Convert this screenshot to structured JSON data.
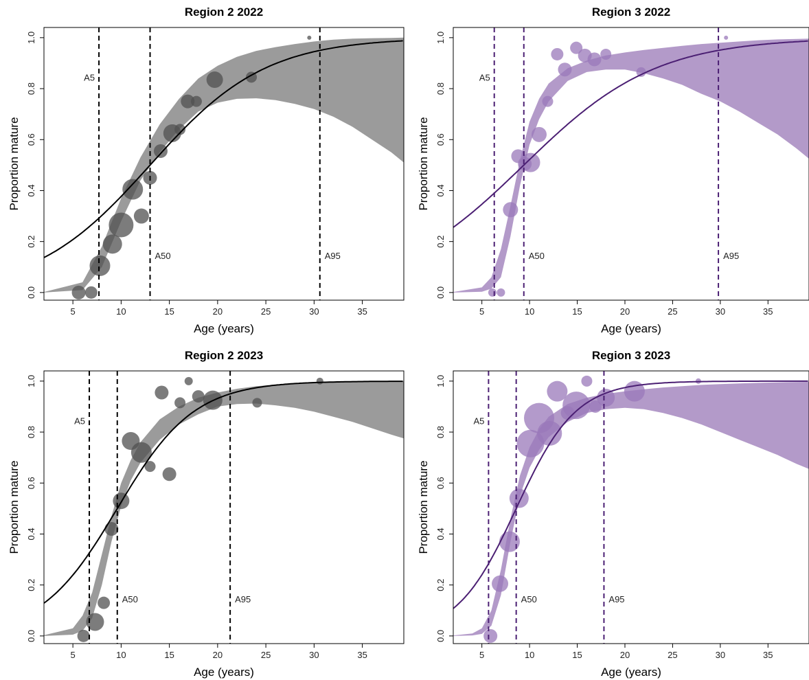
{
  "figure": {
    "x_tick_labels": [
      "5",
      "10",
      "15",
      "20",
      "25",
      "30",
      "35"
    ],
    "y_tick_labels": [
      "0.0",
      "0.2",
      "0.4",
      "0.6",
      "0.8",
      "1.0"
    ]
  },
  "chart_data": [
    {
      "type": "scatter",
      "title": "Region 2  2022",
      "xlabel": "Age (years)",
      "ylabel": "Proportion mature",
      "xlim": [
        2,
        39.3
      ],
      "ylim": [
        -0.03,
        1.04
      ],
      "xticks": [
        5,
        10,
        15,
        20,
        25,
        30,
        35
      ],
      "yticks": [
        0,
        0.2,
        0.4,
        0.6,
        0.8,
        1.0
      ],
      "color": "#000000",
      "band_color": "#9b9b9b",
      "point_color": "#505050",
      "curve": {
        "A50": 13.0,
        "A95": 30.6
      },
      "band_lower": [
        [
          2,
          0
        ],
        [
          6,
          0.01
        ],
        [
          8,
          0.1
        ],
        [
          10,
          0.28
        ],
        [
          12,
          0.44
        ],
        [
          14,
          0.55
        ],
        [
          16,
          0.64
        ],
        [
          18,
          0.71
        ],
        [
          20,
          0.745
        ],
        [
          22,
          0.76
        ],
        [
          24,
          0.762
        ],
        [
          26,
          0.755
        ],
        [
          28,
          0.74
        ],
        [
          30,
          0.72
        ],
        [
          32,
          0.69
        ],
        [
          34,
          0.65
        ],
        [
          36,
          0.6
        ],
        [
          38,
          0.55
        ],
        [
          39.3,
          0.51
        ]
      ],
      "band_upper": [
        [
          2,
          0.002
        ],
        [
          6,
          0.04
        ],
        [
          8,
          0.18
        ],
        [
          10,
          0.37
        ],
        [
          12,
          0.53
        ],
        [
          14,
          0.66
        ],
        [
          16,
          0.76
        ],
        [
          18,
          0.84
        ],
        [
          20,
          0.89
        ],
        [
          22,
          0.925
        ],
        [
          24,
          0.948
        ],
        [
          26,
          0.963
        ],
        [
          28,
          0.975
        ],
        [
          30,
          0.985
        ],
        [
          32,
          0.992
        ],
        [
          34,
          0.996
        ],
        [
          36,
          0.998
        ],
        [
          38,
          0.999
        ],
        [
          39.3,
          1.0
        ]
      ],
      "vlines": [
        {
          "label": "A5",
          "x": 7.7,
          "label_y": 0.845,
          "side": "left"
        },
        {
          "label": "A50",
          "x": 13.0,
          "label_y": 0.145,
          "side": "right"
        },
        {
          "label": "A95",
          "x": 30.6,
          "label_y": 0.145,
          "side": "right"
        }
      ],
      "points": [
        {
          "x": 5.6,
          "y": 0.0,
          "r": 10
        },
        {
          "x": 6.9,
          "y": 0.0,
          "r": 9
        },
        {
          "x": 7.8,
          "y": 0.105,
          "r": 15
        },
        {
          "x": 9.1,
          "y": 0.19,
          "r": 14
        },
        {
          "x": 10.0,
          "y": 0.265,
          "r": 18
        },
        {
          "x": 11.2,
          "y": 0.405,
          "r": 15
        },
        {
          "x": 12.1,
          "y": 0.3,
          "r": 11
        },
        {
          "x": 13.0,
          "y": 0.45,
          "r": 10
        },
        {
          "x": 14.1,
          "y": 0.555,
          "r": 10
        },
        {
          "x": 15.3,
          "y": 0.625,
          "r": 13
        },
        {
          "x": 16.1,
          "y": 0.64,
          "r": 8
        },
        {
          "x": 16.9,
          "y": 0.75,
          "r": 10
        },
        {
          "x": 17.8,
          "y": 0.75,
          "r": 8
        },
        {
          "x": 19.7,
          "y": 0.835,
          "r": 12
        },
        {
          "x": 23.5,
          "y": 0.845,
          "r": 8
        },
        {
          "x": 29.5,
          "y": 1.0,
          "r": 3
        }
      ]
    },
    {
      "type": "scatter",
      "title": "Region 3  2022",
      "xlabel": "Age (years)",
      "ylabel": "Proportion mature",
      "xlim": [
        2,
        39.3
      ],
      "ylim": [
        -0.03,
        1.04
      ],
      "xticks": [
        5,
        10,
        15,
        20,
        25,
        30,
        35
      ],
      "yticks": [
        0,
        0.2,
        0.4,
        0.6,
        0.8,
        1.0
      ],
      "color": "#4b1f73",
      "band_color": "#b39ac9",
      "point_color": "#9a78ba",
      "curve": {
        "A50": 9.4,
        "A95": 29.8
      },
      "band_lower": [
        [
          2,
          0
        ],
        [
          5,
          0.003
        ],
        [
          6,
          0.015
        ],
        [
          7,
          0.06
        ],
        [
          8,
          0.22
        ],
        [
          9,
          0.42
        ],
        [
          10,
          0.58
        ],
        [
          11,
          0.68
        ],
        [
          12,
          0.75
        ],
        [
          14,
          0.83
        ],
        [
          16,
          0.865
        ],
        [
          18,
          0.875
        ],
        [
          20,
          0.875
        ],
        [
          22,
          0.86
        ],
        [
          24,
          0.84
        ],
        [
          26,
          0.815
        ],
        [
          28,
          0.78
        ],
        [
          30,
          0.75
        ],
        [
          32,
          0.71
        ],
        [
          34,
          0.665
        ],
        [
          36,
          0.62
        ],
        [
          38,
          0.565
        ],
        [
          39.3,
          0.525
        ]
      ],
      "band_upper": [
        [
          2,
          0.002
        ],
        [
          5,
          0.02
        ],
        [
          6,
          0.06
        ],
        [
          7,
          0.17
        ],
        [
          8,
          0.34
        ],
        [
          9,
          0.52
        ],
        [
          10,
          0.67
        ],
        [
          11,
          0.76
        ],
        [
          12,
          0.82
        ],
        [
          14,
          0.88
        ],
        [
          16,
          0.91
        ],
        [
          18,
          0.93
        ],
        [
          20,
          0.942
        ],
        [
          22,
          0.952
        ],
        [
          24,
          0.96
        ],
        [
          26,
          0.968
        ],
        [
          28,
          0.975
        ],
        [
          30,
          0.98
        ],
        [
          32,
          0.985
        ],
        [
          34,
          0.99
        ],
        [
          36,
          0.993
        ],
        [
          38,
          0.995
        ],
        [
          39.3,
          0.996
        ]
      ],
      "vlines": [
        {
          "label": "A5",
          "x": 6.3,
          "label_y": 0.845,
          "side": "left"
        },
        {
          "label": "A50",
          "x": 9.4,
          "label_y": 0.145,
          "side": "right"
        },
        {
          "label": "A95",
          "x": 29.8,
          "label_y": 0.145,
          "side": "right"
        }
      ],
      "points": [
        {
          "x": 6.1,
          "y": 0.0,
          "r": 6
        },
        {
          "x": 7.0,
          "y": 0.0,
          "r": 6
        },
        {
          "x": 8.0,
          "y": 0.325,
          "r": 11
        },
        {
          "x": 8.8,
          "y": 0.535,
          "r": 10
        },
        {
          "x": 9.5,
          "y": 0.505,
          "r": 10
        },
        {
          "x": 10.1,
          "y": 0.51,
          "r": 14
        },
        {
          "x": 11.0,
          "y": 0.62,
          "r": 11
        },
        {
          "x": 11.9,
          "y": 0.75,
          "r": 8
        },
        {
          "x": 12.9,
          "y": 0.935,
          "r": 9
        },
        {
          "x": 13.7,
          "y": 0.875,
          "r": 10
        },
        {
          "x": 14.9,
          "y": 0.96,
          "r": 9
        },
        {
          "x": 15.8,
          "y": 0.93,
          "r": 10
        },
        {
          "x": 16.8,
          "y": 0.915,
          "r": 10
        },
        {
          "x": 18.0,
          "y": 0.935,
          "r": 8
        },
        {
          "x": 21.7,
          "y": 0.865,
          "r": 7
        },
        {
          "x": 30.6,
          "y": 1.0,
          "r": 3
        }
      ]
    },
    {
      "type": "scatter",
      "title": "Region 2  2023",
      "xlabel": "Age (years)",
      "ylabel": "Proportion mature",
      "xlim": [
        2,
        39.3
      ],
      "ylim": [
        -0.03,
        1.04
      ],
      "xticks": [
        5,
        10,
        15,
        20,
        25,
        30,
        35
      ],
      "yticks": [
        0,
        0.2,
        0.4,
        0.6,
        0.8,
        1.0
      ],
      "color": "#000000",
      "band_color": "#9b9b9b",
      "point_color": "#505050",
      "curve": {
        "A50": 9.6,
        "A95": 21.3
      },
      "band_lower": [
        [
          2,
          0
        ],
        [
          5,
          0.005
        ],
        [
          6,
          0.02
        ],
        [
          7,
          0.07
        ],
        [
          8,
          0.2
        ],
        [
          9,
          0.37
        ],
        [
          10,
          0.51
        ],
        [
          11,
          0.61
        ],
        [
          12,
          0.68
        ],
        [
          14,
          0.77
        ],
        [
          16,
          0.83
        ],
        [
          18,
          0.87
        ],
        [
          20,
          0.9
        ],
        [
          22,
          0.91
        ],
        [
          24,
          0.912
        ],
        [
          26,
          0.905
        ],
        [
          28,
          0.895
        ],
        [
          30,
          0.88
        ],
        [
          32,
          0.86
        ],
        [
          34,
          0.84
        ],
        [
          36,
          0.815
        ],
        [
          38,
          0.79
        ],
        [
          39.3,
          0.775
        ]
      ],
      "band_upper": [
        [
          2,
          0.003
        ],
        [
          5,
          0.03
        ],
        [
          6,
          0.08
        ],
        [
          7,
          0.17
        ],
        [
          8,
          0.32
        ],
        [
          9,
          0.47
        ],
        [
          10,
          0.6
        ],
        [
          11,
          0.69
        ],
        [
          12,
          0.76
        ],
        [
          14,
          0.85
        ],
        [
          16,
          0.9
        ],
        [
          18,
          0.935
        ],
        [
          20,
          0.955
        ],
        [
          22,
          0.97
        ],
        [
          24,
          0.98
        ],
        [
          26,
          0.986
        ],
        [
          28,
          0.991
        ],
        [
          30,
          0.994
        ],
        [
          32,
          0.996
        ],
        [
          34,
          0.998
        ],
        [
          36,
          0.999
        ],
        [
          38,
          1.0
        ],
        [
          39.3,
          1.0
        ]
      ],
      "vlines": [
        {
          "label": "A5",
          "x": 6.7,
          "label_y": 0.845,
          "side": "left"
        },
        {
          "label": "A50",
          "x": 9.6,
          "label_y": 0.145,
          "side": "right"
        },
        {
          "label": "A95",
          "x": 21.3,
          "label_y": 0.145,
          "side": "right"
        }
      ],
      "points": [
        {
          "x": 6.1,
          "y": 0.0,
          "r": 9
        },
        {
          "x": 7.3,
          "y": 0.055,
          "r": 13
        },
        {
          "x": 8.2,
          "y": 0.13,
          "r": 9
        },
        {
          "x": 9.0,
          "y": 0.42,
          "r": 10
        },
        {
          "x": 10.0,
          "y": 0.53,
          "r": 12
        },
        {
          "x": 11.0,
          "y": 0.765,
          "r": 13
        },
        {
          "x": 12.1,
          "y": 0.72,
          "r": 15
        },
        {
          "x": 13.0,
          "y": 0.665,
          "r": 8
        },
        {
          "x": 14.2,
          "y": 0.955,
          "r": 10
        },
        {
          "x": 15.0,
          "y": 0.635,
          "r": 10
        },
        {
          "x": 16.1,
          "y": 0.915,
          "r": 8
        },
        {
          "x": 17.0,
          "y": 1.0,
          "r": 6
        },
        {
          "x": 18.0,
          "y": 0.94,
          "r": 9
        },
        {
          "x": 19.5,
          "y": 0.925,
          "r": 14
        },
        {
          "x": 24.1,
          "y": 0.915,
          "r": 7
        },
        {
          "x": 30.6,
          "y": 1.0,
          "r": 5
        }
      ]
    },
    {
      "type": "scatter",
      "title": "Region 3  2023",
      "xlabel": "Age (years)",
      "ylabel": "Proportion mature",
      "xlim": [
        2,
        39.3
      ],
      "ylim": [
        -0.03,
        1.04
      ],
      "xticks": [
        5,
        10,
        15,
        20,
        25,
        30,
        35
      ],
      "yticks": [
        0,
        0.2,
        0.4,
        0.6,
        0.8,
        1.0
      ],
      "color": "#4b1f73",
      "band_color": "#b39ac9",
      "point_color": "#9a78ba",
      "curve": {
        "A50": 8.6,
        "A95": 17.8
      },
      "band_lower": [
        [
          2,
          0
        ],
        [
          4,
          0.002
        ],
        [
          5,
          0.008
        ],
        [
          6,
          0.04
        ],
        [
          7,
          0.16
        ],
        [
          8,
          0.37
        ],
        [
          9,
          0.55
        ],
        [
          10,
          0.66
        ],
        [
          11,
          0.73
        ],
        [
          12,
          0.78
        ],
        [
          14,
          0.84
        ],
        [
          16,
          0.875
        ],
        [
          18,
          0.89
        ],
        [
          20,
          0.895
        ],
        [
          22,
          0.89
        ],
        [
          24,
          0.875
        ],
        [
          26,
          0.855
        ],
        [
          28,
          0.83
        ],
        [
          30,
          0.8
        ],
        [
          32,
          0.77
        ],
        [
          34,
          0.74
        ],
        [
          36,
          0.71
        ],
        [
          38,
          0.675
        ],
        [
          39.3,
          0.655
        ]
      ],
      "band_upper": [
        [
          2,
          0.002
        ],
        [
          4,
          0.01
        ],
        [
          5,
          0.03
        ],
        [
          6,
          0.1
        ],
        [
          7,
          0.26
        ],
        [
          8,
          0.46
        ],
        [
          9,
          0.63
        ],
        [
          10,
          0.74
        ],
        [
          11,
          0.81
        ],
        [
          12,
          0.86
        ],
        [
          14,
          0.91
        ],
        [
          16,
          0.935
        ],
        [
          18,
          0.95
        ],
        [
          20,
          0.96
        ],
        [
          22,
          0.968
        ],
        [
          24,
          0.975
        ],
        [
          26,
          0.98
        ],
        [
          28,
          0.985
        ],
        [
          30,
          0.988
        ],
        [
          32,
          0.991
        ],
        [
          34,
          0.993
        ],
        [
          36,
          0.995
        ],
        [
          38,
          0.996
        ],
        [
          39.3,
          0.997
        ]
      ],
      "vlines": [
        {
          "label": "A5",
          "x": 5.7,
          "label_y": 0.845,
          "side": "left"
        },
        {
          "label": "A50",
          "x": 8.6,
          "label_y": 0.145,
          "side": "right"
        },
        {
          "label": "A95",
          "x": 17.8,
          "label_y": 0.145,
          "side": "right"
        }
      ],
      "points": [
        {
          "x": 5.9,
          "y": 0.0,
          "r": 10
        },
        {
          "x": 6.9,
          "y": 0.205,
          "r": 12
        },
        {
          "x": 7.9,
          "y": 0.37,
          "r": 15
        },
        {
          "x": 8.9,
          "y": 0.54,
          "r": 14
        },
        {
          "x": 10.1,
          "y": 0.755,
          "r": 20
        },
        {
          "x": 11.0,
          "y": 0.855,
          "r": 22
        },
        {
          "x": 12.1,
          "y": 0.795,
          "r": 18
        },
        {
          "x": 12.9,
          "y": 0.96,
          "r": 15
        },
        {
          "x": 14.0,
          "y": 0.875,
          "r": 10
        },
        {
          "x": 14.9,
          "y": 0.905,
          "r": 20
        },
        {
          "x": 16.0,
          "y": 1.0,
          "r": 8
        },
        {
          "x": 16.9,
          "y": 0.9,
          "r": 9
        },
        {
          "x": 18.0,
          "y": 0.935,
          "r": 13
        },
        {
          "x": 21.0,
          "y": 0.96,
          "r": 15
        },
        {
          "x": 27.7,
          "y": 1.0,
          "r": 4
        }
      ]
    }
  ]
}
